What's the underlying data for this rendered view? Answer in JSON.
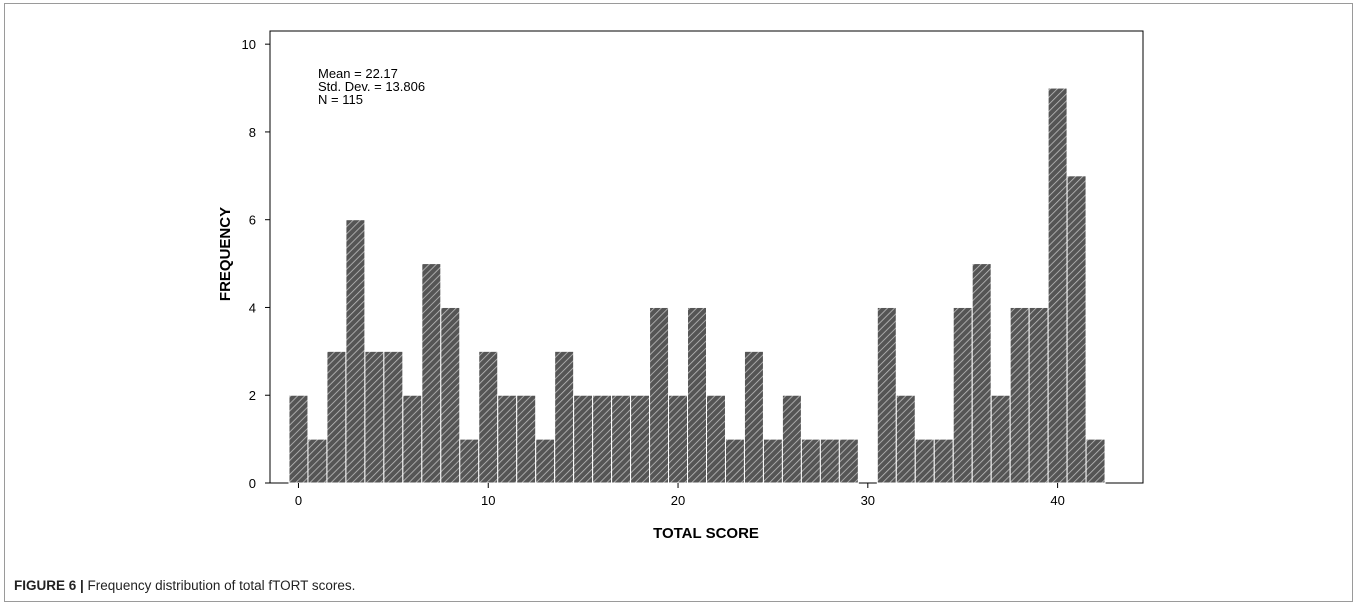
{
  "chart_data": {
    "type": "bar",
    "subtype": "histogram",
    "xlabel": "TOTAL SCORE",
    "ylabel": "FREQUENCY",
    "xlim": [
      -1.5,
      44.5
    ],
    "ylim": [
      0,
      10.3
    ],
    "xticks": [
      0,
      10,
      20,
      30,
      40
    ],
    "yticks": [
      0,
      2,
      4,
      6,
      8,
      10
    ],
    "bin_width": 1,
    "x": [
      0,
      1,
      2,
      3,
      4,
      5,
      6,
      7,
      8,
      9,
      10,
      11,
      12,
      13,
      14,
      15,
      16,
      17,
      18,
      19,
      20,
      21,
      22,
      23,
      24,
      25,
      26,
      27,
      28,
      29,
      30,
      31,
      32,
      33,
      34,
      35,
      36,
      37,
      38,
      39,
      40,
      41,
      42
    ],
    "values": [
      2,
      1,
      3,
      6,
      3,
      3,
      2,
      5,
      4,
      1,
      3,
      2,
      2,
      1,
      3,
      2,
      2,
      2,
      2,
      4,
      2,
      4,
      2,
      1,
      3,
      1,
      2,
      1,
      1,
      1,
      0,
      4,
      2,
      1,
      1,
      4,
      5,
      2,
      4,
      4,
      9,
      7,
      1
    ],
    "stats_lines": [
      "Mean = 22.17",
      "Std. Dev. = 13.806",
      "N = 115"
    ],
    "bar_color": "#555555",
    "hatch_color": "#bdbdbd",
    "grid": false
  },
  "caption": {
    "label": "FIGURE 6 |",
    "text": " Frequency distribution of total fTORT scores."
  }
}
